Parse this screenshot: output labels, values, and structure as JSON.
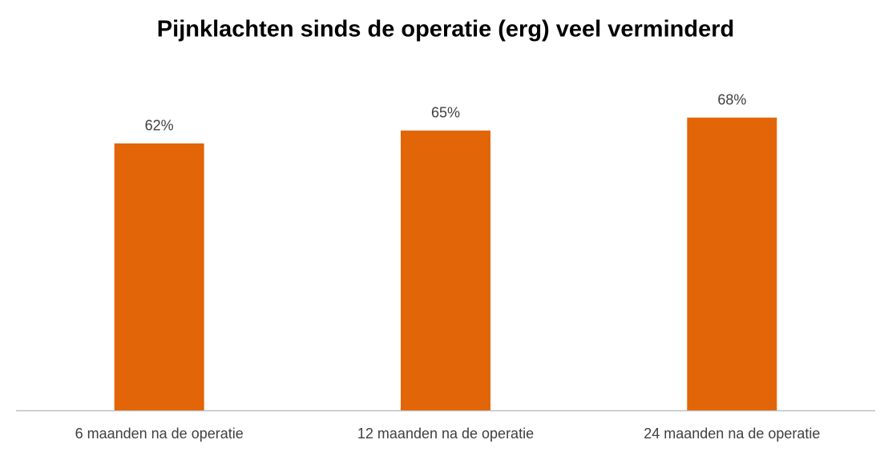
{
  "chart_data": {
    "type": "bar",
    "title": "Pijnklachten sinds de operatie (erg) veel verminderd",
    "categories": [
      "6 maanden na de operatie",
      "12 maanden na de operatie",
      "24 maanden na de operatie"
    ],
    "values": [
      62,
      65,
      68
    ],
    "value_labels": [
      "62%",
      "65%",
      "68%"
    ],
    "color": "#e26508",
    "ylim": [
      0,
      70
    ],
    "grid": false
  }
}
